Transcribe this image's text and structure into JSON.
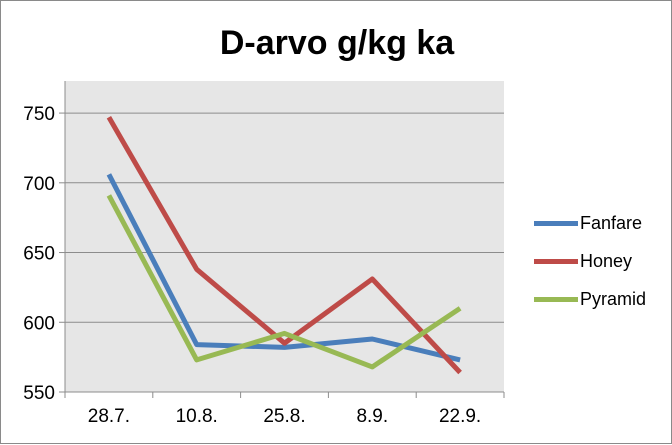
{
  "chart_data": {
    "type": "line",
    "title": "D-arvo g/kg ka",
    "xlabel": "",
    "ylabel": "",
    "categories": [
      "28.7.",
      "10.8.",
      "25.8.",
      "8.9.",
      "22.9."
    ],
    "ylim": [
      550,
      750
    ],
    "yticks": [
      550,
      600,
      650,
      700,
      750
    ],
    "grid": "horizontal",
    "legend_position": "right",
    "series": [
      {
        "name": "Fanfare",
        "color": "#4a7ebb",
        "values": [
          706,
          584,
          582,
          588,
          573
        ]
      },
      {
        "name": "Honey",
        "color": "#be4b48",
        "values": [
          747,
          638,
          585,
          631,
          564
        ]
      },
      {
        "name": "Pyramid",
        "color": "#98b954",
        "values": [
          691,
          573,
          592,
          568,
          610
        ]
      }
    ]
  }
}
